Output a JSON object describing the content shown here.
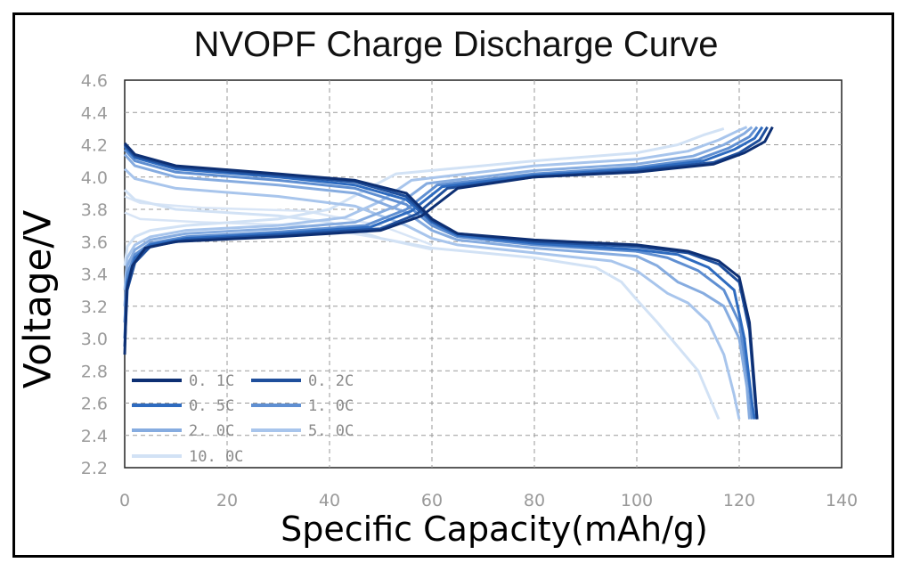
{
  "chart_data": {
    "type": "line",
    "title": "NVOPF Charge Discharge Curve",
    "xlabel": "Specific Capacity(mAh/g)",
    "ylabel": "Voltage/V",
    "xlim": [
      0,
      140
    ],
    "ylim": [
      2.2,
      4.6
    ],
    "xticks": [
      0,
      20,
      40,
      60,
      80,
      100,
      120,
      140
    ],
    "yticks": [
      "2.2",
      "2.4",
      "2.6",
      "2.8",
      "3.0",
      "3.2",
      "3.4",
      "3.6",
      "3.8",
      "4.0",
      "4.2",
      "4.4",
      "4.6"
    ],
    "grid": true,
    "legend_position": "bottom-left",
    "series": [
      {
        "name": "0. 1C",
        "color": "#0d2f73",
        "charge": [
          [
            0,
            2.9
          ],
          [
            0.4,
            3.3
          ],
          [
            1.5,
            3.45
          ],
          [
            4,
            3.56
          ],
          [
            10,
            3.6
          ],
          [
            30,
            3.63
          ],
          [
            50,
            3.67
          ],
          [
            58,
            3.76
          ],
          [
            65,
            3.93
          ],
          [
            80,
            4.0
          ],
          [
            100,
            4.03
          ],
          [
            115,
            4.08
          ],
          [
            121,
            4.15
          ],
          [
            125,
            4.22
          ],
          [
            126.5,
            4.31
          ]
        ],
        "discharge": [
          [
            0,
            4.21
          ],
          [
            2,
            4.14
          ],
          [
            10,
            4.07
          ],
          [
            30,
            4.02
          ],
          [
            45,
            3.98
          ],
          [
            55,
            3.9
          ],
          [
            60,
            3.74
          ],
          [
            65,
            3.65
          ],
          [
            80,
            3.61
          ],
          [
            100,
            3.58
          ],
          [
            110,
            3.54
          ],
          [
            116,
            3.48
          ],
          [
            120,
            3.38
          ],
          [
            122,
            3.1
          ],
          [
            123,
            2.7
          ],
          [
            123.5,
            2.5
          ]
        ]
      },
      {
        "name": "0. 2C",
        "color": "#1f4f9c",
        "charge": [
          [
            0,
            2.95
          ],
          [
            0.5,
            3.3
          ],
          [
            2,
            3.47
          ],
          [
            5,
            3.57
          ],
          [
            12,
            3.61
          ],
          [
            30,
            3.64
          ],
          [
            50,
            3.68
          ],
          [
            57,
            3.77
          ],
          [
            63,
            3.93
          ],
          [
            80,
            4.0
          ],
          [
            100,
            4.04
          ],
          [
            115,
            4.09
          ],
          [
            120,
            4.15
          ],
          [
            124,
            4.23
          ],
          [
            125.5,
            4.31
          ]
        ],
        "discharge": [
          [
            0,
            4.2
          ],
          [
            2,
            4.13
          ],
          [
            10,
            4.06
          ],
          [
            30,
            4.01
          ],
          [
            45,
            3.97
          ],
          [
            55,
            3.88
          ],
          [
            60,
            3.73
          ],
          [
            65,
            3.65
          ],
          [
            80,
            3.6
          ],
          [
            100,
            3.57
          ],
          [
            110,
            3.53
          ],
          [
            116,
            3.46
          ],
          [
            120,
            3.35
          ],
          [
            122,
            3.05
          ],
          [
            123,
            2.65
          ],
          [
            123.5,
            2.5
          ]
        ]
      },
      {
        "name": "0. 5C",
        "color": "#2e6bbf",
        "charge": [
          [
            0,
            3.0
          ],
          [
            0.5,
            3.35
          ],
          [
            2,
            3.5
          ],
          [
            5,
            3.58
          ],
          [
            12,
            3.62
          ],
          [
            30,
            3.65
          ],
          [
            48,
            3.69
          ],
          [
            56,
            3.79
          ],
          [
            62,
            3.94
          ],
          [
            80,
            4.01
          ],
          [
            100,
            4.05
          ],
          [
            113,
            4.1
          ],
          [
            119,
            4.17
          ],
          [
            123,
            4.24
          ],
          [
            124.5,
            4.31
          ]
        ],
        "discharge": [
          [
            0,
            4.19
          ],
          [
            2,
            4.12
          ],
          [
            10,
            4.05
          ],
          [
            30,
            4.0
          ],
          [
            45,
            3.95
          ],
          [
            55,
            3.86
          ],
          [
            60,
            3.72
          ],
          [
            65,
            3.64
          ],
          [
            80,
            3.59
          ],
          [
            100,
            3.55
          ],
          [
            108,
            3.52
          ],
          [
            114,
            3.44
          ],
          [
            119,
            3.3
          ],
          [
            121,
            3.0
          ],
          [
            122.5,
            2.6
          ],
          [
            123,
            2.5
          ]
        ]
      },
      {
        "name": "1. 0C",
        "color": "#5f8fd2",
        "charge": [
          [
            0,
            3.1
          ],
          [
            0.5,
            3.4
          ],
          [
            2,
            3.52
          ],
          [
            5,
            3.59
          ],
          [
            12,
            3.63
          ],
          [
            30,
            3.66
          ],
          [
            47,
            3.7
          ],
          [
            55,
            3.8
          ],
          [
            61,
            3.95
          ],
          [
            80,
            4.02
          ],
          [
            100,
            4.06
          ],
          [
            112,
            4.11
          ],
          [
            118,
            4.18
          ],
          [
            122,
            4.25
          ],
          [
            123.5,
            4.31
          ]
        ],
        "discharge": [
          [
            0,
            4.17
          ],
          [
            2,
            4.1
          ],
          [
            10,
            4.03
          ],
          [
            30,
            3.98
          ],
          [
            45,
            3.93
          ],
          [
            55,
            3.83
          ],
          [
            60,
            3.7
          ],
          [
            65,
            3.63
          ],
          [
            80,
            3.58
          ],
          [
            100,
            3.54
          ],
          [
            106,
            3.5
          ],
          [
            112,
            3.42
          ],
          [
            117,
            3.3
          ],
          [
            120,
            3.1
          ],
          [
            122,
            2.7
          ],
          [
            122.5,
            2.5
          ]
        ]
      },
      {
        "name": "2. 0C",
        "color": "#86ace0",
        "charge": [
          [
            0,
            3.2
          ],
          [
            0.5,
            3.45
          ],
          [
            2,
            3.55
          ],
          [
            5,
            3.61
          ],
          [
            12,
            3.65
          ],
          [
            30,
            3.68
          ],
          [
            45,
            3.72
          ],
          [
            53,
            3.82
          ],
          [
            59,
            3.96
          ],
          [
            80,
            4.04
          ],
          [
            100,
            4.08
          ],
          [
            111,
            4.13
          ],
          [
            117,
            4.2
          ],
          [
            121,
            4.27
          ],
          [
            122.5,
            4.31
          ]
        ],
        "discharge": [
          [
            0,
            4.14
          ],
          [
            2,
            4.07
          ],
          [
            10,
            4.0
          ],
          [
            30,
            3.95
          ],
          [
            45,
            3.9
          ],
          [
            55,
            3.78
          ],
          [
            60,
            3.67
          ],
          [
            65,
            3.61
          ],
          [
            80,
            3.56
          ],
          [
            100,
            3.51
          ],
          [
            104,
            3.45
          ],
          [
            108,
            3.35
          ],
          [
            113,
            3.28
          ],
          [
            117,
            3.2
          ],
          [
            120,
            3.0
          ],
          [
            121.5,
            2.7
          ],
          [
            122,
            2.5
          ]
        ]
      },
      {
        "name": "5. 0C",
        "color": "#a8c5ec",
        "charge": [
          [
            0,
            3.3
          ],
          [
            0.5,
            3.5
          ],
          [
            2,
            3.58
          ],
          [
            5,
            3.63
          ],
          [
            12,
            3.67
          ],
          [
            30,
            3.7
          ],
          [
            43,
            3.75
          ],
          [
            50,
            3.85
          ],
          [
            56,
            3.98
          ],
          [
            80,
            4.07
          ],
          [
            100,
            4.11
          ],
          [
            110,
            4.16
          ],
          [
            116,
            4.23
          ],
          [
            120,
            4.29
          ],
          [
            121.5,
            4.31
          ]
        ],
        "discharge": [
          [
            0,
            4.05
          ],
          [
            2,
            3.99
          ],
          [
            10,
            3.93
          ],
          [
            30,
            3.88
          ],
          [
            45,
            3.82
          ],
          [
            55,
            3.7
          ],
          [
            60,
            3.62
          ],
          [
            65,
            3.58
          ],
          [
            80,
            3.53
          ],
          [
            95,
            3.48
          ],
          [
            100,
            3.42
          ],
          [
            103,
            3.35
          ],
          [
            106,
            3.28
          ],
          [
            110,
            3.22
          ],
          [
            114,
            3.1
          ],
          [
            117,
            2.9
          ],
          [
            119,
            2.65
          ],
          [
            120,
            2.5
          ]
        ]
      },
      {
        "name": "10. 0C",
        "color": "#d2e2f5",
        "charge": [
          [
            0,
            3.45
          ],
          [
            0.5,
            3.57
          ],
          [
            2,
            3.63
          ],
          [
            5,
            3.67
          ],
          [
            12,
            3.7
          ],
          [
            30,
            3.74
          ],
          [
            40,
            3.8
          ],
          [
            47,
            3.92
          ],
          [
            53,
            4.02
          ],
          [
            80,
            4.1
          ],
          [
            100,
            4.15
          ],
          [
            108,
            4.2
          ],
          [
            113,
            4.26
          ],
          [
            117,
            4.3
          ]
        ],
        "discharge": [
          [
            0,
            3.92
          ],
          [
            2,
            3.86
          ],
          [
            10,
            3.8
          ],
          [
            30,
            3.76
          ],
          [
            40,
            3.72
          ],
          [
            50,
            3.62
          ],
          [
            60,
            3.56
          ],
          [
            80,
            3.5
          ],
          [
            92,
            3.44
          ],
          [
            97,
            3.35
          ],
          [
            100,
            3.24
          ],
          [
            104,
            3.1
          ],
          [
            108,
            2.95
          ],
          [
            112,
            2.8
          ],
          [
            114,
            2.65
          ],
          [
            116,
            2.5
          ]
        ]
      }
    ],
    "discharge_variants": [
      [
        [
          0,
          3.78
        ],
        [
          3,
          3.74
        ],
        [
          15,
          3.72
        ],
        [
          35,
          3.7
        ],
        [
          50,
          3.62
        ],
        [
          60,
          3.55
        ]
      ],
      [
        [
          0,
          3.88
        ],
        [
          3,
          3.84
        ],
        [
          15,
          3.81
        ],
        [
          35,
          3.79
        ],
        [
          50,
          3.7
        ],
        [
          60,
          3.58
        ]
      ]
    ]
  }
}
